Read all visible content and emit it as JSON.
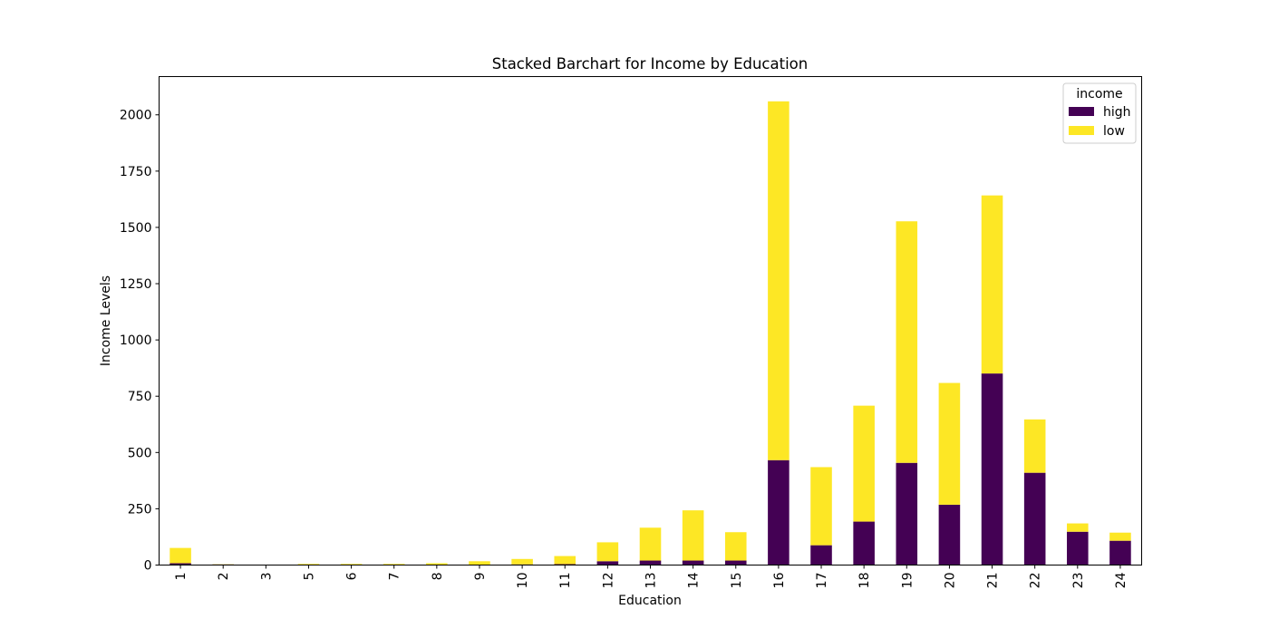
{
  "chart_data": {
    "type": "bar",
    "stacked": true,
    "title": "Stacked Barchart for Income by Education",
    "xlabel": "Education",
    "ylabel": "Income Levels",
    "categories": [
      "1",
      "2",
      "3",
      "5",
      "6",
      "7",
      "8",
      "9",
      "10",
      "11",
      "12",
      "13",
      "14",
      "15",
      "16",
      "17",
      "18",
      "19",
      "20",
      "21",
      "22",
      "23",
      "24"
    ],
    "series": [
      {
        "name": "high",
        "color": "#440154",
        "values": [
          8,
          3,
          0,
          0,
          1,
          0,
          1,
          1,
          3,
          4,
          17,
          20,
          20,
          20,
          466,
          88,
          193,
          454,
          268,
          851,
          410,
          148,
          108
        ]
      },
      {
        "name": "low",
        "color": "#fde725",
        "values": [
          68,
          1,
          1,
          5,
          4,
          5,
          7,
          16,
          24,
          36,
          84,
          146,
          223,
          126,
          1594,
          347,
          515,
          1073,
          541,
          791,
          237,
          37,
          36
        ]
      }
    ],
    "ylim": [
      0,
      2170
    ],
    "yticks": [
      0,
      250,
      500,
      750,
      1000,
      1250,
      1500,
      1750,
      2000
    ],
    "grid": false,
    "legend": {
      "title": "income",
      "placement": "top-right"
    }
  }
}
